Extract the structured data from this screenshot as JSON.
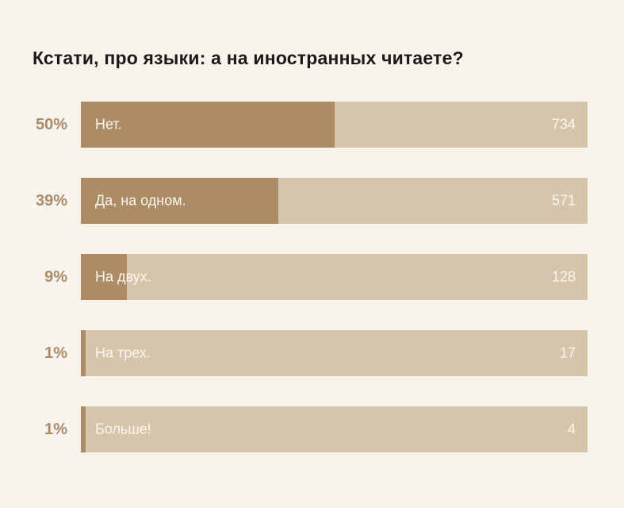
{
  "title": "Кстати, про языки: а на иностранных читаете?",
  "colors": {
    "background": "#f7f3ed",
    "bar_track": "#d6c4ab",
    "bar_fill": "#ac8c66",
    "percent_label": "#ab8c68",
    "title_text": "#1d1a15",
    "bar_text": "#faf7f1"
  },
  "chart_data": {
    "type": "bar",
    "orientation": "horizontal",
    "title": "Кстати, про языки: а на иностранных читаете?",
    "categories": [
      "Нет.",
      "Да, на одном.",
      "На двух.",
      "На трех.",
      "Больше!"
    ],
    "values": [
      734,
      571,
      128,
      17,
      4
    ],
    "percent_labels": [
      "50%",
      "39%",
      "9%",
      "1%",
      "1%"
    ],
    "fill_percent": [
      50,
      39,
      9,
      1,
      1
    ],
    "grid": false,
    "legend": false,
    "value_labels_position": "inside-right",
    "category_labels_position": "inside-left"
  }
}
